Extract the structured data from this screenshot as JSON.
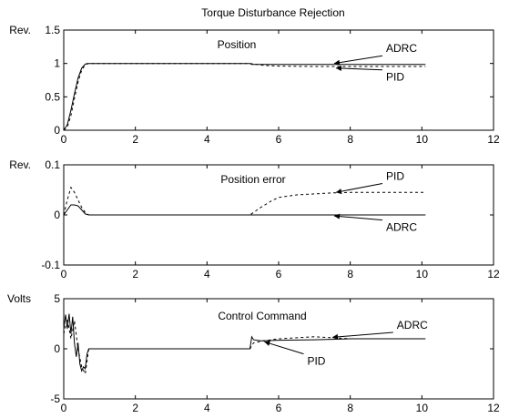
{
  "title": "Torque Disturbance Rejection",
  "chart_data": [
    {
      "type": "line",
      "title": "Position",
      "ylabel": "Rev.",
      "xlim": [
        0,
        12
      ],
      "ylim": [
        0,
        1.5
      ],
      "xticks": [
        "0",
        "2",
        "4",
        "6",
        "8",
        "10",
        "12"
      ],
      "yticks": [
        "0",
        "0.5",
        "1",
        "1.5"
      ],
      "series": [
        {
          "name": "ADRC",
          "style": "solid",
          "x": [
            0,
            0.1,
            0.2,
            0.3,
            0.4,
            0.5,
            0.6,
            0.65,
            0.7,
            1,
            2,
            3,
            4,
            5,
            5.2,
            5.25,
            6,
            7,
            8,
            9,
            10,
            10.1
          ],
          "y": [
            0,
            0.08,
            0.3,
            0.55,
            0.78,
            0.93,
            0.99,
            1.0,
            1.0,
            1.0,
            1.0,
            1.0,
            1.0,
            1.0,
            1.0,
            0.985,
            0.985,
            0.985,
            0.985,
            0.985,
            0.985,
            0.985
          ]
        },
        {
          "name": "PID",
          "style": "dashed",
          "x": [
            0,
            0.1,
            0.2,
            0.3,
            0.4,
            0.5,
            0.6,
            0.7,
            0.8,
            1,
            2,
            3,
            4,
            5,
            5.2,
            5.6,
            6,
            7,
            8,
            9,
            10,
            10.1
          ],
          "y": [
            0,
            0.05,
            0.22,
            0.48,
            0.72,
            0.9,
            0.98,
            1.0,
            1.0,
            1.0,
            1.0,
            1.0,
            1.0,
            1.0,
            1.0,
            0.97,
            0.96,
            0.955,
            0.955,
            0.955,
            0.955,
            0.955
          ]
        }
      ],
      "annotations": [
        {
          "text": "ADRC",
          "x": 7.55,
          "y": 1.0,
          "tx": 9.0,
          "ty": 1.17
        },
        {
          "text": "PID",
          "x": 7.6,
          "y": 0.93,
          "tx": 9.0,
          "ty": 0.74
        }
      ]
    },
    {
      "type": "line",
      "title": "Position error",
      "ylabel": "Rev.",
      "xlim": [
        0,
        12
      ],
      "ylim": [
        -0.1,
        0.1
      ],
      "xticks": [
        "0",
        "2",
        "4",
        "6",
        "8",
        "10",
        "12"
      ],
      "yticks": [
        "-0.1",
        "0",
        "0.1"
      ],
      "series": [
        {
          "name": "ADRC",
          "style": "solid",
          "x": [
            0,
            0.1,
            0.2,
            0.3,
            0.4,
            0.5,
            0.6,
            0.7,
            1,
            2,
            3,
            4,
            5,
            5.2,
            6,
            7,
            8,
            9,
            10,
            10.1
          ],
          "y": [
            0,
            0.01,
            0.02,
            0.02,
            0.018,
            0.01,
            0.002,
            0.0,
            0.0,
            0.0,
            0.0,
            0.0,
            0.0,
            0.0,
            0.0,
            0.0,
            0.0,
            0.0,
            0.0,
            0.0
          ]
        },
        {
          "name": "PID",
          "style": "dashed",
          "x": [
            0,
            0.1,
            0.2,
            0.3,
            0.4,
            0.5,
            0.6,
            0.7,
            1,
            2,
            3,
            4,
            5,
            5.2,
            5.5,
            5.8,
            6,
            6.5,
            7,
            7.5,
            8,
            9,
            10,
            10.1
          ],
          "y": [
            0,
            0.03,
            0.055,
            0.045,
            0.03,
            0.015,
            0.005,
            0.0,
            0.0,
            0.0,
            0.0,
            0.0,
            0.0,
            0.0,
            0.015,
            0.028,
            0.035,
            0.04,
            0.042,
            0.044,
            0.045,
            0.045,
            0.045,
            0.045
          ]
        }
      ],
      "annotations": [
        {
          "text": "PID",
          "x": 7.6,
          "y": 0.045,
          "tx": 9.0,
          "ty": 0.07
        },
        {
          "text": "ADRC",
          "x": 7.55,
          "y": -0.002,
          "tx": 9.0,
          "ty": -0.032
        }
      ]
    },
    {
      "type": "line",
      "title": "Control Command",
      "ylabel": "Volts",
      "xlim": [
        0,
        12
      ],
      "ylim": [
        -5,
        5
      ],
      "xticks": [
        "0",
        "2",
        "4",
        "6",
        "8",
        "10",
        "12"
      ],
      "yticks": [
        "-5",
        "0",
        "5"
      ],
      "series": [
        {
          "name": "ADRC",
          "style": "solid",
          "x": [
            0,
            0.05,
            0.1,
            0.15,
            0.2,
            0.25,
            0.3,
            0.35,
            0.4,
            0.45,
            0.5,
            0.55,
            0.6,
            0.65,
            0.7,
            1,
            2,
            3,
            4,
            5,
            5.2,
            5.25,
            5.3,
            5.5,
            6,
            7,
            8,
            9,
            10,
            10.1
          ],
          "y": [
            2.0,
            3.4,
            2.0,
            3.5,
            1.5,
            3.2,
            0.5,
            -0.8,
            0.6,
            -1.5,
            -2.2,
            -1.8,
            -2.0,
            -0.5,
            0.0,
            0.0,
            0.0,
            0.0,
            0.0,
            0.0,
            0.0,
            1.2,
            0.9,
            0.8,
            0.85,
            0.9,
            1.0,
            1.0,
            1.0,
            1.0
          ]
        },
        {
          "name": "PID",
          "style": "dashed",
          "x": [
            0,
            0.1,
            0.2,
            0.3,
            0.4,
            0.5,
            0.6,
            0.7,
            1,
            2,
            3,
            4,
            5,
            5.2,
            5.3,
            5.6,
            6,
            6.5,
            7,
            7.5,
            8,
            9,
            10,
            10.1
          ],
          "y": [
            1.5,
            3.0,
            1.0,
            2.8,
            0.0,
            -1.8,
            -2.5,
            0.0,
            0.0,
            0.0,
            0.0,
            0.0,
            0.0,
            0.0,
            0.6,
            0.8,
            1.0,
            1.1,
            1.2,
            1.1,
            1.0,
            1.0,
            1.0,
            1.0
          ]
        }
      ],
      "annotations": [
        {
          "text": "ADRC",
          "x": 7.5,
          "y": 1.15,
          "tx": 9.3,
          "ty": 2.0
        },
        {
          "text": "PID",
          "x": 5.6,
          "y": 0.7,
          "tx": 6.8,
          "ty": -1.6
        }
      ]
    }
  ]
}
